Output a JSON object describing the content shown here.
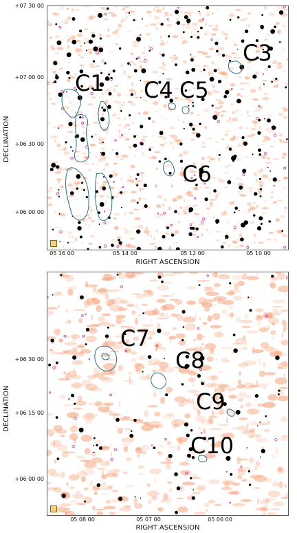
{
  "top": {
    "y_ticks": [
      "+07 30 00",
      "+07 00 00",
      "+06 30 00",
      "+06 00 00"
    ],
    "x_ticks": [
      "05 16 00",
      "05 14 00",
      "05 12 00",
      "05 10 00"
    ],
    "x_axis_label": "RIGHT ASCENSION",
    "y_axis_label": "DECLINATION",
    "labels": [
      "C1",
      "C3",
      "C4",
      "C5",
      "C6"
    ]
  },
  "bottom": {
    "y_ticks": [
      "+06 30 00",
      "+06 15 00",
      "+06 00 00"
    ],
    "x_ticks": [
      "05 08 00",
      "05 07 00",
      "05 06 00"
    ],
    "x_axis_label": "RIGHT ASCENSION",
    "y_axis_label": "DECLINATION",
    "labels": [
      "C7",
      "C8",
      "C9",
      "C10"
    ]
  },
  "colors": {
    "background_emission": "#f3a27a",
    "contour": "#2a6f7f",
    "point_sources": "#000000",
    "magenta_sources": "#c0208a"
  }
}
